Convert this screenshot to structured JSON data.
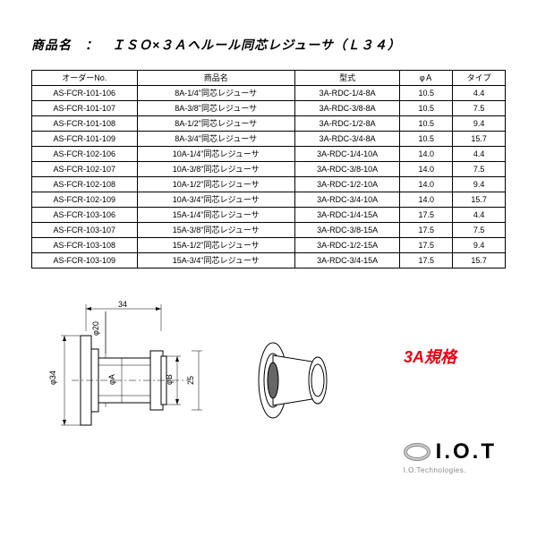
{
  "title": "商品名　：　ＩＳＯ×３Ａヘルール同芯レジューサ（Ｌ３４）",
  "headers": {
    "order": "オーダーNo.",
    "name": "商品名",
    "model": "型式",
    "phia": "φＡ",
    "type": "タイプ"
  },
  "rows": [
    {
      "order": "AS-FCR-101-106",
      "name": "8A-1/4\"同芯レジューサ",
      "model": "3A-RDC-1/4-8A",
      "phia": "10.5",
      "type": "4.4"
    },
    {
      "order": "AS-FCR-101-107",
      "name": "8A-3/8\"同芯レジューサ",
      "model": "3A-RDC-3/8-8A",
      "phia": "10.5",
      "type": "7.5"
    },
    {
      "order": "AS-FCR-101-108",
      "name": "8A-1/2\"同芯レジューサ",
      "model": "3A-RDC-1/2-8A",
      "phia": "10.5",
      "type": "9.4"
    },
    {
      "order": "AS-FCR-101-109",
      "name": "8A-3/4\"同芯レジューサ",
      "model": "3A-RDC-3/4-8A",
      "phia": "10.5",
      "type": "15.7"
    },
    {
      "order": "AS-FCR-102-106",
      "name": "10A-1/4\"同芯レジューサ",
      "model": "3A-RDC-1/4-10A",
      "phia": "14.0",
      "type": "4.4"
    },
    {
      "order": "AS-FCR-102-107",
      "name": "10A-3/8\"同芯レジューサ",
      "model": "3A-RDC-3/8-10A",
      "phia": "14.0",
      "type": "7.5"
    },
    {
      "order": "AS-FCR-102-108",
      "name": "10A-1/2\"同芯レジューサ",
      "model": "3A-RDC-1/2-10A",
      "phia": "14.0",
      "type": "9.4"
    },
    {
      "order": "AS-FCR-102-109",
      "name": "10A-3/4\"同芯レジューサ",
      "model": "3A-RDC-3/4-10A",
      "phia": "14.0",
      "type": "15.7"
    },
    {
      "order": "AS-FCR-103-106",
      "name": "15A-1/4\"同芯レジューサ",
      "model": "3A-RDC-1/4-15A",
      "phia": "17.5",
      "type": "4.4"
    },
    {
      "order": "AS-FCR-103-107",
      "name": "15A-3/8\"同芯レジューサ",
      "model": "3A-RDC-3/8-15A",
      "phia": "17.5",
      "type": "7.5"
    },
    {
      "order": "AS-FCR-103-108",
      "name": "15A-1/2\"同芯レジューサ",
      "model": "3A-RDC-1/2-15A",
      "phia": "17.5",
      "type": "9.4"
    },
    {
      "order": "AS-FCR-103-109",
      "name": "15A-3/4\"同芯レジューサ",
      "model": "3A-RDC-3/4-15A",
      "phia": "17.5",
      "type": "15.7"
    }
  ],
  "dims": {
    "len": "34",
    "d1": "φ20",
    "d_outer": "φ34",
    "dA": "φA",
    "dB": "φB",
    "d25": "25"
  },
  "standard": "3A規格",
  "logo": {
    "text": "I.O.T",
    "sub": "I.O.Technologies."
  }
}
